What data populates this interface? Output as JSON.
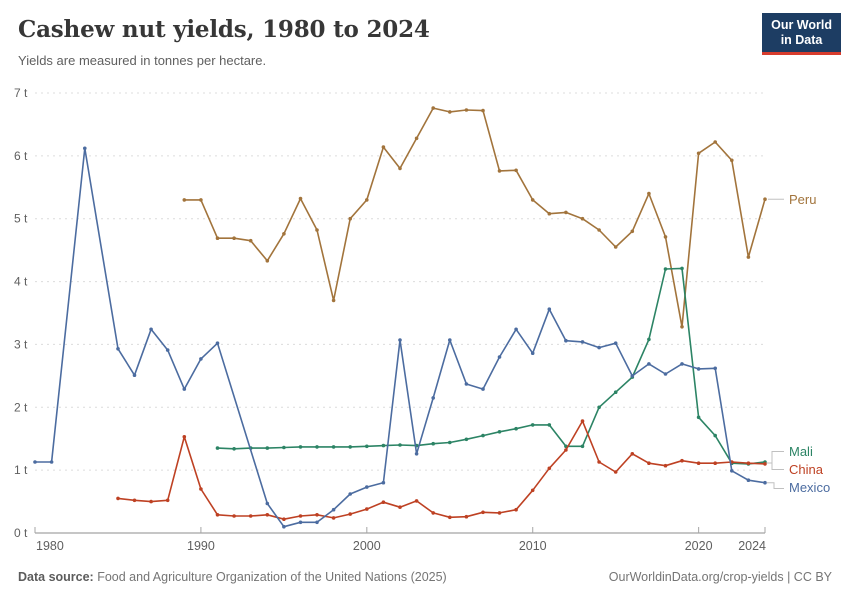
{
  "header": {
    "title": "Cashew nut yields, 1980 to 2024",
    "subtitle": "Yields are measured in tonnes per hectare.",
    "logo": {
      "line1": "Our World",
      "line2": "in Data",
      "bg_color": "#1d3d63",
      "accent_color": "#d73c2d"
    }
  },
  "footer": {
    "source_label": "Data source:",
    "source_text": " Food and Agriculture Organization of the United Nations (2025)",
    "right_text": "OurWorldinData.org/crop-yields | CC BY"
  },
  "chart_data": {
    "type": "line",
    "title": "Cashew nut yields, 1980 to 2024",
    "ylabel": "tonnes per hectare",
    "xlabel": "",
    "xlim": [
      1980,
      2024
    ],
    "ylim": [
      0,
      7
    ],
    "yticks": [
      0,
      1,
      2,
      3,
      4,
      5,
      6,
      7
    ],
    "ytick_suffix": " t",
    "xticks": [
      1980,
      1990,
      2000,
      2010,
      2020,
      2024
    ],
    "grid": "horizontal-dashed",
    "legend_position": "end-of-line-labels",
    "axis_color": "#8c8c8c",
    "grid_color": "#dcdcdc",
    "tick_label_color": "#5f5f5f",
    "connector_color": "#c0c0c0",
    "series": [
      {
        "name": "Peru",
        "color": "#a2743c",
        "points": [
          [
            1989,
            5.3
          ],
          [
            1990,
            5.3
          ],
          [
            1991,
            4.69
          ],
          [
            1992,
            4.69
          ],
          [
            1993,
            4.65
          ],
          [
            1994,
            4.33
          ],
          [
            1995,
            4.76
          ],
          [
            1996,
            5.32
          ],
          [
            1997,
            4.82
          ],
          [
            1998,
            3.7
          ],
          [
            1999,
            5.0
          ],
          [
            2000,
            5.3
          ],
          [
            2001,
            6.14
          ],
          [
            2002,
            5.8
          ],
          [
            2003,
            6.28
          ],
          [
            2004,
            6.76
          ],
          [
            2005,
            6.7
          ],
          [
            2006,
            6.73
          ],
          [
            2007,
            6.72
          ],
          [
            2008,
            5.76
          ],
          [
            2009,
            5.77
          ],
          [
            2010,
            5.3
          ],
          [
            2011,
            5.08
          ],
          [
            2012,
            5.1
          ],
          [
            2013,
            5.0
          ],
          [
            2014,
            4.82
          ],
          [
            2015,
            4.55
          ],
          [
            2016,
            4.8
          ],
          [
            2017,
            5.4
          ],
          [
            2018,
            4.71
          ],
          [
            2019,
            3.28
          ],
          [
            2020,
            6.04
          ],
          [
            2021,
            6.22
          ],
          [
            2022,
            5.93
          ],
          [
            2023,
            4.39
          ],
          [
            2024,
            5.31
          ]
        ]
      },
      {
        "name": "Mali",
        "color": "#2c8465",
        "points": [
          [
            1991,
            1.35
          ],
          [
            1992,
            1.34
          ],
          [
            1993,
            1.35
          ],
          [
            1994,
            1.35
          ],
          [
            1995,
            1.36
          ],
          [
            1996,
            1.37
          ],
          [
            1997,
            1.37
          ],
          [
            1998,
            1.37
          ],
          [
            1999,
            1.37
          ],
          [
            2000,
            1.38
          ],
          [
            2001,
            1.39
          ],
          [
            2002,
            1.4
          ],
          [
            2003,
            1.39
          ],
          [
            2004,
            1.42
          ],
          [
            2005,
            1.44
          ],
          [
            2006,
            1.49
          ],
          [
            2007,
            1.55
          ],
          [
            2008,
            1.61
          ],
          [
            2009,
            1.66
          ],
          [
            2010,
            1.72
          ],
          [
            2011,
            1.72
          ],
          [
            2012,
            1.38
          ],
          [
            2013,
            1.38
          ],
          [
            2014,
            2.0
          ],
          [
            2015,
            2.24
          ],
          [
            2016,
            2.48
          ],
          [
            2017,
            3.08
          ],
          [
            2018,
            4.2
          ],
          [
            2019,
            4.21
          ],
          [
            2020,
            1.84
          ],
          [
            2021,
            1.55
          ],
          [
            2022,
            1.11
          ],
          [
            2023,
            1.1
          ],
          [
            2024,
            1.13
          ]
        ]
      },
      {
        "name": "China",
        "color": "#be4123",
        "points": [
          [
            1985,
            0.55
          ],
          [
            1986,
            0.52
          ],
          [
            1987,
            0.5
          ],
          [
            1988,
            0.52
          ],
          [
            1989,
            1.53
          ],
          [
            1990,
            0.7
          ],
          [
            1991,
            0.29
          ],
          [
            1992,
            0.27
          ],
          [
            1993,
            0.27
          ],
          [
            1994,
            0.29
          ],
          [
            1995,
            0.22
          ],
          [
            1996,
            0.27
          ],
          [
            1997,
            0.29
          ],
          [
            1998,
            0.24
          ],
          [
            1999,
            0.3
          ],
          [
            2000,
            0.38
          ],
          [
            2001,
            0.49
          ],
          [
            2002,
            0.41
          ],
          [
            2003,
            0.51
          ],
          [
            2004,
            0.32
          ],
          [
            2005,
            0.25
          ],
          [
            2006,
            0.26
          ],
          [
            2007,
            0.33
          ],
          [
            2008,
            0.32
          ],
          [
            2009,
            0.37
          ],
          [
            2010,
            0.68
          ],
          [
            2011,
            1.03
          ],
          [
            2012,
            1.32
          ],
          [
            2013,
            1.78
          ],
          [
            2014,
            1.13
          ],
          [
            2015,
            0.97
          ],
          [
            2016,
            1.26
          ],
          [
            2017,
            1.11
          ],
          [
            2018,
            1.07
          ],
          [
            2019,
            1.15
          ],
          [
            2020,
            1.11
          ],
          [
            2021,
            1.11
          ],
          [
            2022,
            1.13
          ],
          [
            2023,
            1.11
          ],
          [
            2024,
            1.1
          ]
        ]
      },
      {
        "name": "Mexico",
        "color": "#4c6ca0",
        "points": [
          [
            1980,
            1.13
          ],
          [
            1981,
            1.13
          ],
          [
            1983,
            6.12
          ],
          [
            1985,
            2.93
          ],
          [
            1986,
            2.51
          ],
          [
            1987,
            3.24
          ],
          [
            1988,
            2.91
          ],
          [
            1989,
            2.29
          ],
          [
            1990,
            2.77
          ],
          [
            1991,
            3.02
          ],
          [
            1994,
            0.47
          ],
          [
            1995,
            0.1
          ],
          [
            1996,
            0.17
          ],
          [
            1997,
            0.17
          ],
          [
            1998,
            0.37
          ],
          [
            1999,
            0.62
          ],
          [
            2000,
            0.73
          ],
          [
            2001,
            0.8
          ],
          [
            2002,
            3.07
          ],
          [
            2003,
            1.26
          ],
          [
            2004,
            2.15
          ],
          [
            2005,
            3.07
          ],
          [
            2006,
            2.37
          ],
          [
            2007,
            2.29
          ],
          [
            2008,
            2.8
          ],
          [
            2009,
            3.24
          ],
          [
            2010,
            2.86
          ],
          [
            2011,
            3.56
          ],
          [
            2012,
            3.06
          ],
          [
            2013,
            3.04
          ],
          [
            2014,
            2.95
          ],
          [
            2015,
            3.02
          ],
          [
            2016,
            2.5
          ],
          [
            2017,
            2.69
          ],
          [
            2018,
            2.53
          ],
          [
            2019,
            2.69
          ],
          [
            2020,
            2.61
          ],
          [
            2021,
            2.62
          ],
          [
            2022,
            0.99
          ],
          [
            2023,
            0.84
          ],
          [
            2024,
            0.8
          ]
        ]
      }
    ]
  }
}
